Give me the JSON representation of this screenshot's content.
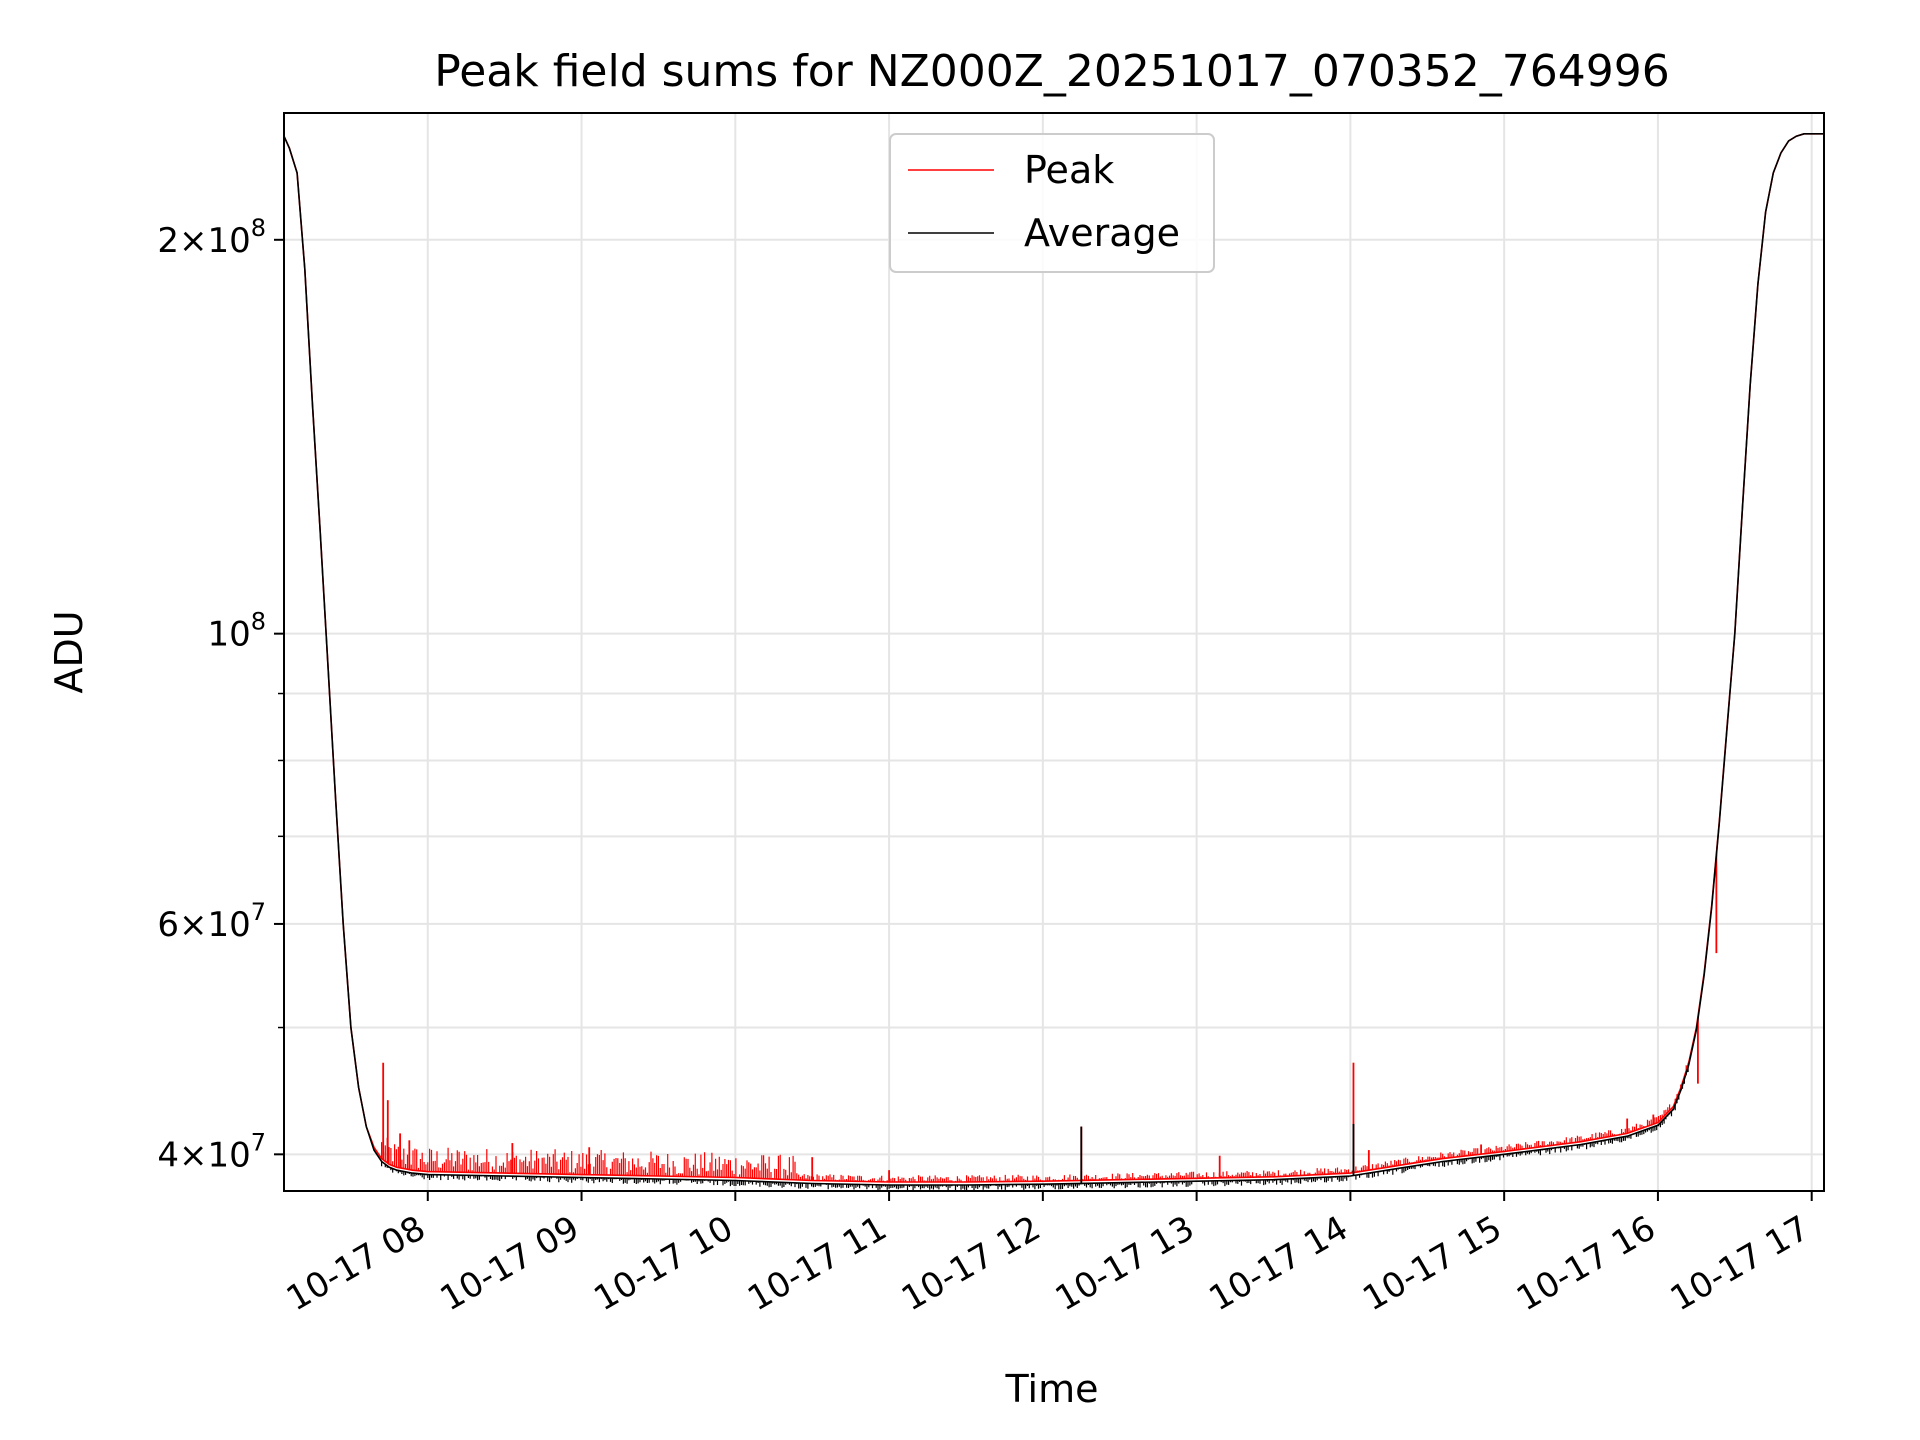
{
  "chart_data": {
    "type": "line",
    "title": "Peak field sums for NZ000Z_20251017_070352_764996",
    "xlabel": "Time",
    "ylabel": "ADU",
    "yscale": "log",
    "ylim": [
      37500000,
      250000000
    ],
    "xlim_hours": [
      7.065,
      17.08
    ],
    "grid": true,
    "legend_position": "top-center",
    "x_ticks": [
      {
        "hour": 8,
        "label": "10-17 08"
      },
      {
        "hour": 9,
        "label": "10-17 09"
      },
      {
        "hour": 10,
        "label": "10-17 10"
      },
      {
        "hour": 11,
        "label": "10-17 11"
      },
      {
        "hour": 12,
        "label": "10-17 12"
      },
      {
        "hour": 13,
        "label": "10-17 13"
      },
      {
        "hour": 14,
        "label": "10-17 14"
      },
      {
        "hour": 15,
        "label": "10-17 15"
      },
      {
        "hour": 16,
        "label": "10-17 16"
      },
      {
        "hour": 17,
        "label": "10-17 17"
      }
    ],
    "y_ticks": [
      {
        "value": 40000000,
        "mantissa": "4",
        "exponent": "7"
      },
      {
        "value": 60000000,
        "mantissa": "6",
        "exponent": "7"
      },
      {
        "value": 100000000,
        "mantissa": "",
        "exponent": "8"
      },
      {
        "value": 200000000,
        "mantissa": "2",
        "exponent": "8"
      }
    ],
    "y_minor_ticks": [
      50000000,
      70000000,
      80000000,
      90000000
    ],
    "series": [
      {
        "name": "Peak",
        "color": "#ff0000",
        "x_hours": [
          7.065,
          7.1,
          7.15,
          7.2,
          7.25,
          7.3,
          7.35,
          7.4,
          7.45,
          7.5,
          7.55,
          7.6,
          7.65,
          7.7,
          7.75,
          7.8,
          7.85,
          7.9,
          8.0,
          8.5,
          9.0,
          9.5,
          10.0,
          10.5,
          11.0,
          11.5,
          12.0,
          12.5,
          13.0,
          13.5,
          14.0,
          14.3,
          14.6,
          15.0,
          15.5,
          15.8,
          16.0,
          16.1,
          16.15,
          16.2,
          16.25,
          16.3,
          16.35,
          16.4,
          16.45,
          16.5,
          16.55,
          16.6,
          16.65,
          16.7,
          16.75,
          16.8,
          16.85,
          16.9,
          16.95,
          17.0,
          17.08
        ],
        "values": [
          240000000,
          235000000,
          225000000,
          190000000,
          150000000,
          120000000,
          95000000,
          75000000,
          60000000,
          50000000,
          45000000,
          42000000,
          40500000,
          39700000,
          39300000,
          39100000,
          39000000,
          38900000,
          38800000,
          38700000,
          38600000,
          38500000,
          38400000,
          38200000,
          38100000,
          38100000,
          38150000,
          38250000,
          38350000,
          38450000,
          38700000,
          39200000,
          39700000,
          40200000,
          40900000,
          41500000,
          42300000,
          43500000,
          45000000,
          47000000,
          50000000,
          55000000,
          62000000,
          72000000,
          85000000,
          100000000,
          125000000,
          155000000,
          185000000,
          210000000,
          225000000,
          233000000,
          238000000,
          240000000,
          241000000,
          241000000,
          241000000
        ],
        "spikes": [
          {
            "hour": 7.71,
            "value": 47000000
          },
          {
            "hour": 7.74,
            "value": 44000000
          },
          {
            "hour": 7.82,
            "value": 41500000
          },
          {
            "hour": 7.88,
            "value": 41000000
          },
          {
            "hour": 8.55,
            "value": 40800000
          },
          {
            "hour": 9.05,
            "value": 40500000
          },
          {
            "hour": 10.5,
            "value": 39800000
          },
          {
            "hour": 11.0,
            "value": 38900000
          },
          {
            "hour": 12.25,
            "value": 42000000
          },
          {
            "hour": 13.15,
            "value": 39900000
          },
          {
            "hour": 14.02,
            "value": 47000000
          },
          {
            "hour": 14.12,
            "value": 40300000
          },
          {
            "hour": 14.85,
            "value": 40700000
          },
          {
            "hour": 15.8,
            "value": 42600000
          },
          {
            "hour": 15.97,
            "value": 42900000
          },
          {
            "hour": 16.26,
            "value": 45300000
          },
          {
            "hour": 16.38,
            "value": 57000000
          }
        ]
      },
      {
        "name": "Average",
        "color": "#000000",
        "x_hours": [
          7.065,
          7.1,
          7.15,
          7.2,
          7.25,
          7.3,
          7.35,
          7.4,
          7.45,
          7.5,
          7.55,
          7.6,
          7.65,
          7.7,
          7.75,
          7.8,
          7.85,
          7.9,
          8.0,
          8.5,
          9.0,
          9.5,
          10.0,
          10.5,
          11.0,
          11.5,
          12.0,
          12.5,
          13.0,
          13.5,
          14.0,
          14.3,
          14.6,
          15.0,
          15.5,
          15.8,
          16.0,
          16.1,
          16.15,
          16.2,
          16.25,
          16.3,
          16.35,
          16.4,
          16.45,
          16.5,
          16.55,
          16.6,
          16.65,
          16.7,
          16.75,
          16.8,
          16.85,
          16.9,
          16.95,
          17.0,
          17.08
        ],
        "values": [
          240000000,
          235000000,
          225000000,
          190000000,
          150000000,
          120000000,
          95000000,
          75000000,
          60000000,
          50000000,
          45000000,
          42000000,
          40300000,
          39500000,
          39100000,
          38900000,
          38800000,
          38700000,
          38600000,
          38500000,
          38400000,
          38300000,
          38200000,
          38000000,
          37900000,
          37900000,
          37950000,
          38050000,
          38150000,
          38250000,
          38500000,
          39000000,
          39500000,
          40000000,
          40700000,
          41300000,
          42100000,
          43300000,
          44800000,
          46800000,
          49800000,
          54800000,
          61800000,
          71800000,
          84800000,
          100000000,
          125000000,
          155000000,
          185000000,
          210000000,
          225000000,
          233000000,
          238000000,
          240000000,
          241000000,
          241000000,
          241000000
        ],
        "spikes": [
          {
            "hour": 12.25,
            "value": 42000000
          },
          {
            "hour": 14.02,
            "value": 42200000
          }
        ]
      }
    ]
  }
}
